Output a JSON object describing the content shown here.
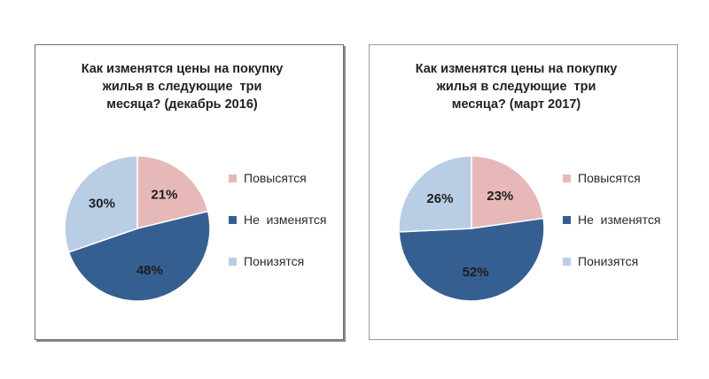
{
  "chart_data": [
    {
      "type": "pie",
      "title_lines": [
        "Как изменятся цены на покупку",
        "жилья в следующие  три",
        "месяца? (декабрь 2016)"
      ],
      "title": "Как изменятся цены на покупку жилья в следующие  три месяца? (декабрь 2016)",
      "slices": [
        {
          "label": "Повысятся",
          "value": 21,
          "display": "21%",
          "color": "#e6b9b8"
        },
        {
          "label": "Не  изменятся",
          "value": 48,
          "display": "48%",
          "color": "#365f91"
        },
        {
          "label": "Понизятся",
          "value": 30,
          "display": "30%",
          "color": "#b9cde5"
        }
      ],
      "legend_position": "right"
    },
    {
      "type": "pie",
      "title_lines": [
        "Как изменятся цены на покупку",
        "жилья в следующие  три",
        "месяца? (март 2017)"
      ],
      "title": "Как изменятся цены на покупку жилья в следующие  три месяца? (март 2017)",
      "slices": [
        {
          "label": "Повысятся",
          "value": 23,
          "display": "23%",
          "color": "#e6b9b8"
        },
        {
          "label": "Не  изменятся",
          "value": 52,
          "display": "52%",
          "color": "#365f91"
        },
        {
          "label": "Понизятся",
          "value": 26,
          "display": "26%",
          "color": "#b9cde5"
        }
      ],
      "legend_position": "right"
    }
  ]
}
